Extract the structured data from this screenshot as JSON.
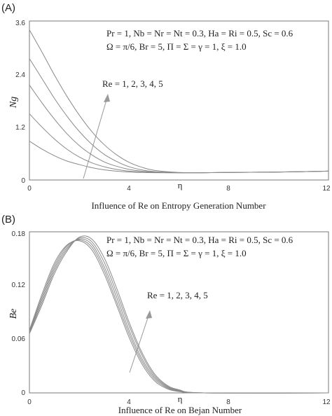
{
  "chart_data": [
    {
      "type": "line",
      "panel_label": "(A)",
      "ylabel": "Ng",
      "xlabel": "η",
      "caption": "Influence of Re on Entropy Generation Number",
      "xlim": [
        0,
        12
      ],
      "ylim": [
        0,
        3.6
      ],
      "xticks": [
        "0",
        "4",
        "8",
        "12"
      ],
      "yticks": [
        "0",
        "1.2",
        "2.4",
        "3.6"
      ],
      "params_line1": "Pr = 1, Nb = Nr = Nt = 0.3, Ha = Ri = 0.5, Sc = 0.6",
      "params_line2": "Ω = π/6, Br = 5, Π = Σ = γ = 1, ξ = 1.0",
      "annotation": "Re = 1, 2, 3, 4, 5",
      "grid": false,
      "series": [
        {
          "x": [
            0,
            0.5,
            1,
            1.5,
            2,
            2.5,
            3,
            3.5,
            4,
            4.5,
            5,
            6,
            7,
            8,
            10,
            12
          ],
          "values": [
            0.88,
            0.7,
            0.55,
            0.43,
            0.35,
            0.28,
            0.23,
            0.2,
            0.18,
            0.17,
            0.165,
            0.163,
            0.165,
            0.17,
            0.18,
            0.2
          ]
        },
        {
          "x": [
            0,
            0.5,
            1,
            1.5,
            2,
            2.5,
            3,
            3.5,
            4,
            4.5,
            5,
            6,
            7,
            8,
            10,
            12
          ],
          "values": [
            1.5,
            1.2,
            0.93,
            0.7,
            0.52,
            0.39,
            0.3,
            0.24,
            0.2,
            0.18,
            0.17,
            0.163,
            0.165,
            0.17,
            0.18,
            0.2
          ]
        },
        {
          "x": [
            0,
            0.5,
            1,
            1.5,
            2,
            2.5,
            3,
            3.5,
            4,
            4.5,
            5,
            6,
            7,
            8,
            10,
            12
          ],
          "values": [
            2.15,
            1.75,
            1.38,
            1.05,
            0.78,
            0.57,
            0.41,
            0.31,
            0.24,
            0.2,
            0.18,
            0.165,
            0.165,
            0.17,
            0.18,
            0.2
          ]
        },
        {
          "x": [
            0,
            0.5,
            1,
            1.5,
            2,
            2.5,
            3,
            3.5,
            4,
            4.5,
            5,
            6,
            7,
            8,
            10,
            12
          ],
          "values": [
            2.75,
            2.3,
            1.85,
            1.45,
            1.1,
            0.81,
            0.58,
            0.42,
            0.3,
            0.23,
            0.19,
            0.167,
            0.165,
            0.17,
            0.18,
            0.2
          ]
        },
        {
          "x": [
            0,
            0.5,
            1,
            1.5,
            2,
            2.5,
            3,
            3.5,
            4,
            4.5,
            5,
            6,
            7,
            8,
            10,
            12
          ],
          "values": [
            3.4,
            2.9,
            2.38,
            1.9,
            1.47,
            1.1,
            0.8,
            0.57,
            0.4,
            0.29,
            0.22,
            0.17,
            0.165,
            0.17,
            0.18,
            0.2
          ]
        }
      ]
    },
    {
      "type": "line",
      "panel_label": "(B)",
      "ylabel": "Be",
      "xlabel": "η",
      "caption": "Influence of Re on Bejan Number",
      "xlim": [
        0,
        12
      ],
      "ylim": [
        0,
        0.18
      ],
      "xticks": [
        "0",
        "4",
        "8",
        "12"
      ],
      "yticks": [
        "0",
        "0.06",
        "0.12",
        "0.18"
      ],
      "params_line1": "Pr = 1, Nb = Nr = Nt = 0.3, Ha = Ri = 0.5, Sc = 0.6",
      "params_line2": "Ω = π/6, Br = 5, Π = Σ = γ = 1, ξ = 1.0",
      "annotation": "Re = 1, 2, 3, 4, 5",
      "grid": false,
      "series": [
        {
          "x": [
            0,
            0.5,
            1,
            1.5,
            2,
            2.5,
            3,
            3.5,
            4,
            4.5,
            5,
            5.5,
            6,
            7,
            12
          ],
          "values": [
            0.07,
            0.11,
            0.145,
            0.165,
            0.17,
            0.16,
            0.133,
            0.098,
            0.062,
            0.033,
            0.014,
            0.005,
            0.0015,
            0,
            0
          ]
        },
        {
          "x": [
            0,
            0.5,
            1,
            1.5,
            2,
            2.5,
            3,
            3.5,
            4,
            4.5,
            5,
            5.5,
            6,
            7,
            12
          ],
          "values": [
            0.069,
            0.107,
            0.142,
            0.164,
            0.171,
            0.163,
            0.137,
            0.102,
            0.066,
            0.036,
            0.016,
            0.006,
            0.002,
            0,
            0
          ]
        },
        {
          "x": [
            0,
            0.5,
            1,
            1.5,
            2,
            2.5,
            3,
            3.5,
            4,
            4.5,
            5,
            5.5,
            6,
            7,
            12
          ],
          "values": [
            0.068,
            0.104,
            0.139,
            0.162,
            0.172,
            0.166,
            0.141,
            0.107,
            0.07,
            0.039,
            0.018,
            0.007,
            0.0025,
            0,
            0
          ]
        },
        {
          "x": [
            0,
            0.5,
            1,
            1.5,
            2,
            2.5,
            3,
            3.5,
            4,
            4.5,
            5,
            5.5,
            6,
            7,
            12
          ],
          "values": [
            0.067,
            0.101,
            0.136,
            0.16,
            0.173,
            0.169,
            0.146,
            0.112,
            0.075,
            0.043,
            0.02,
            0.008,
            0.003,
            0,
            0
          ]
        },
        {
          "x": [
            0,
            0.5,
            1,
            1.5,
            2,
            2.5,
            3,
            3.5,
            4,
            4.5,
            5,
            5.5,
            6,
            7,
            12
          ],
          "values": [
            0.066,
            0.098,
            0.133,
            0.158,
            0.174,
            0.172,
            0.151,
            0.117,
            0.079,
            0.046,
            0.022,
            0.009,
            0.0035,
            0,
            0
          ]
        }
      ]
    }
  ]
}
